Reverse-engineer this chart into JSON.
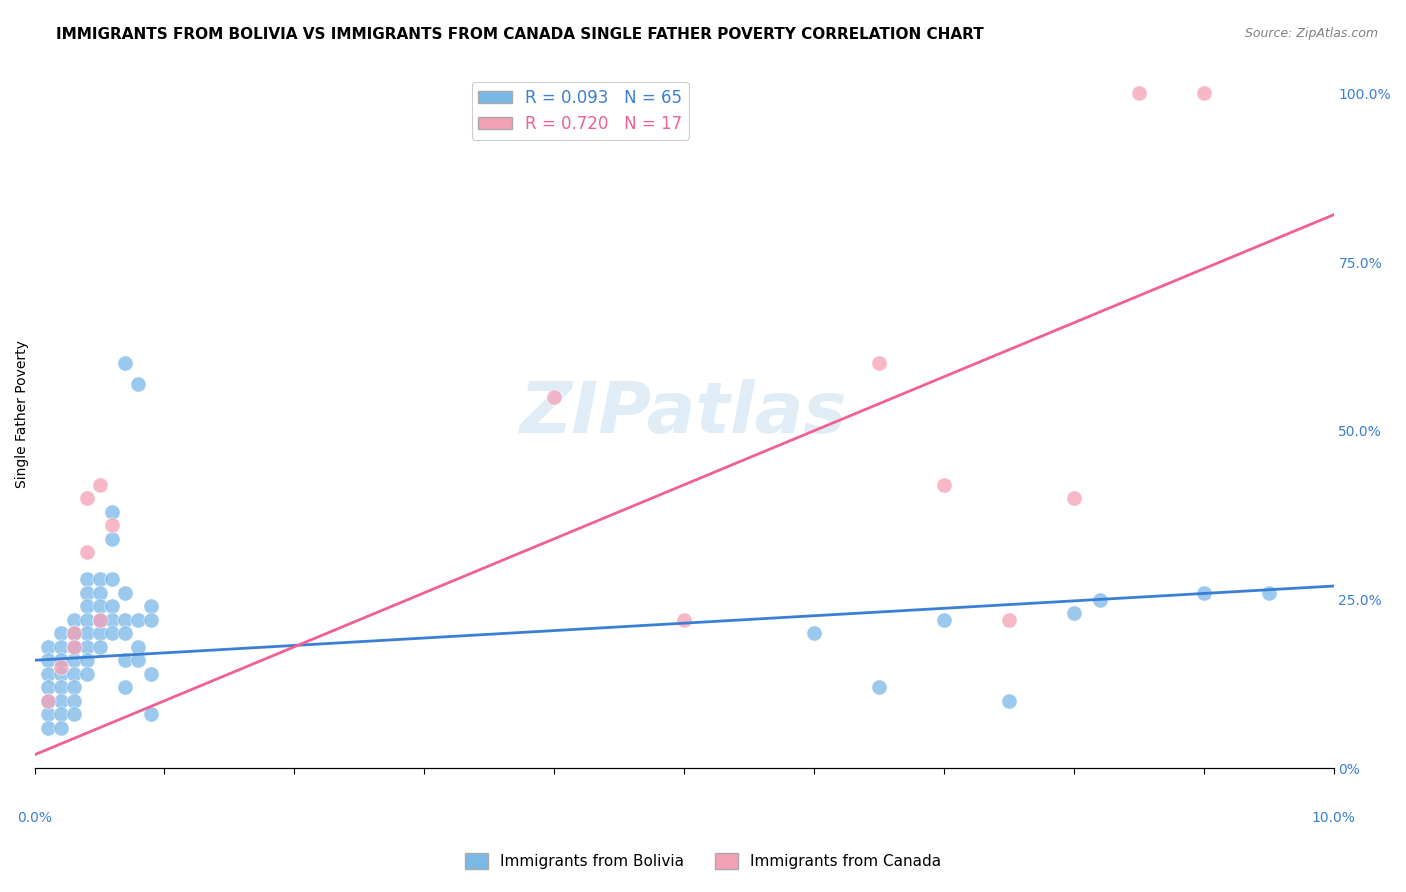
{
  "title": "IMMIGRANTS FROM BOLIVIA VS IMMIGRANTS FROM CANADA SINGLE FATHER POVERTY CORRELATION CHART",
  "source": "Source: ZipAtlas.com",
  "ylabel": "Single Father Poverty",
  "right_ytick_vals": [
    0,
    0.25,
    0.5,
    0.75,
    1.0
  ],
  "right_ytick_labels": [
    "0%",
    "25.0%",
    "50.0%",
    "75.0%",
    "100.0%"
  ],
  "bolivia_color": "#7ab8e8",
  "canada_color": "#f4a0b5",
  "bolivia_line_color": "#3a7fd4",
  "canada_line_color": "#f06090",
  "watermark": "ZIPatlas",
  "xlim": [
    0.0,
    0.1
  ],
  "ylim": [
    0.0,
    1.05
  ],
  "bolivia_scatter": [
    [
      0.001,
      0.18
    ],
    [
      0.001,
      0.16
    ],
    [
      0.001,
      0.14
    ],
    [
      0.001,
      0.12
    ],
    [
      0.001,
      0.1
    ],
    [
      0.001,
      0.08
    ],
    [
      0.001,
      0.06
    ],
    [
      0.002,
      0.2
    ],
    [
      0.002,
      0.18
    ],
    [
      0.002,
      0.16
    ],
    [
      0.002,
      0.14
    ],
    [
      0.002,
      0.12
    ],
    [
      0.002,
      0.1
    ],
    [
      0.002,
      0.08
    ],
    [
      0.002,
      0.06
    ],
    [
      0.003,
      0.22
    ],
    [
      0.003,
      0.2
    ],
    [
      0.003,
      0.18
    ],
    [
      0.003,
      0.16
    ],
    [
      0.003,
      0.14
    ],
    [
      0.003,
      0.12
    ],
    [
      0.003,
      0.1
    ],
    [
      0.003,
      0.08
    ],
    [
      0.004,
      0.28
    ],
    [
      0.004,
      0.26
    ],
    [
      0.004,
      0.24
    ],
    [
      0.004,
      0.22
    ],
    [
      0.004,
      0.2
    ],
    [
      0.004,
      0.18
    ],
    [
      0.004,
      0.16
    ],
    [
      0.004,
      0.14
    ],
    [
      0.005,
      0.28
    ],
    [
      0.005,
      0.26
    ],
    [
      0.005,
      0.24
    ],
    [
      0.005,
      0.22
    ],
    [
      0.005,
      0.2
    ],
    [
      0.005,
      0.18
    ],
    [
      0.006,
      0.38
    ],
    [
      0.006,
      0.34
    ],
    [
      0.006,
      0.28
    ],
    [
      0.006,
      0.24
    ],
    [
      0.006,
      0.22
    ],
    [
      0.006,
      0.2
    ],
    [
      0.007,
      0.6
    ],
    [
      0.007,
      0.26
    ],
    [
      0.007,
      0.22
    ],
    [
      0.007,
      0.2
    ],
    [
      0.007,
      0.16
    ],
    [
      0.007,
      0.12
    ],
    [
      0.008,
      0.57
    ],
    [
      0.008,
      0.22
    ],
    [
      0.008,
      0.18
    ],
    [
      0.008,
      0.16
    ],
    [
      0.009,
      0.24
    ],
    [
      0.009,
      0.22
    ],
    [
      0.009,
      0.14
    ],
    [
      0.009,
      0.08
    ],
    [
      0.06,
      0.2
    ],
    [
      0.065,
      0.12
    ],
    [
      0.07,
      0.22
    ],
    [
      0.075,
      0.1
    ],
    [
      0.08,
      0.23
    ],
    [
      0.082,
      0.25
    ],
    [
      0.09,
      0.26
    ],
    [
      0.095,
      0.26
    ]
  ],
  "canada_scatter": [
    [
      0.001,
      0.1
    ],
    [
      0.002,
      0.15
    ],
    [
      0.003,
      0.2
    ],
    [
      0.003,
      0.18
    ],
    [
      0.004,
      0.32
    ],
    [
      0.004,
      0.4
    ],
    [
      0.005,
      0.42
    ],
    [
      0.005,
      0.22
    ],
    [
      0.006,
      0.36
    ],
    [
      0.04,
      0.55
    ],
    [
      0.05,
      0.22
    ],
    [
      0.065,
      0.6
    ],
    [
      0.07,
      0.42
    ],
    [
      0.075,
      0.22
    ],
    [
      0.08,
      0.4
    ],
    [
      0.085,
      1.0
    ],
    [
      0.09,
      1.0
    ]
  ],
  "bolivia_line": {
    "x0": 0.0,
    "y0": 0.16,
    "x1": 0.1,
    "y1": 0.27
  },
  "canada_line": {
    "x0": 0.0,
    "y0": 0.02,
    "x1": 0.1,
    "y1": 0.82
  },
  "background_color": "#ffffff",
  "grid_color": "#d8d8d8",
  "title_fontsize": 11,
  "axis_label_fontsize": 10,
  "tick_fontsize": 10,
  "legend_fontsize": 12,
  "legend_label1": "R = 0.093   N = 65",
  "legend_label2": "R = 0.720   N = 17",
  "bottom_legend_label1": "Immigrants from Bolivia",
  "bottom_legend_label2": "Immigrants from Canada"
}
